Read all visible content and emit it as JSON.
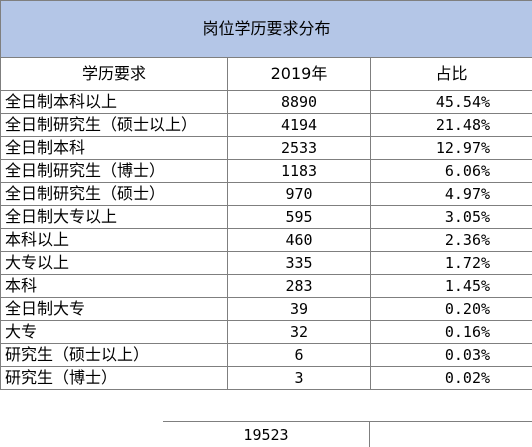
{
  "title": "岗位学历要求分布",
  "headers": [
    "学历要求",
    "2019年",
    "占比"
  ],
  "rows": [
    [
      "全日制本科以上",
      "8890",
      "45.54%"
    ],
    [
      "全日制研究生（硕士以上）",
      "4194",
      "21.48%"
    ],
    [
      "全日制本科",
      "2533",
      "12.97%"
    ],
    [
      "全日制研究生（博士）",
      "1183",
      "6.06%"
    ],
    [
      "全日制研究生（硕士）",
      "970",
      "4.97%"
    ],
    [
      "全日制大专以上",
      "595",
      "3.05%"
    ],
    [
      "本科以上",
      "460",
      "2.36%"
    ],
    [
      "大专以上",
      "335",
      "1.72%"
    ],
    [
      "本科",
      "283",
      "1.45%"
    ],
    [
      "全日制大专",
      "39",
      "0.20%"
    ],
    [
      "大专",
      "32",
      "0.16%"
    ],
    [
      "研究生（硕士以上）",
      "6",
      "0.03%"
    ],
    [
      "研究生（博士）",
      "3",
      "0.02%"
    ]
  ],
  "total": "19523"
}
